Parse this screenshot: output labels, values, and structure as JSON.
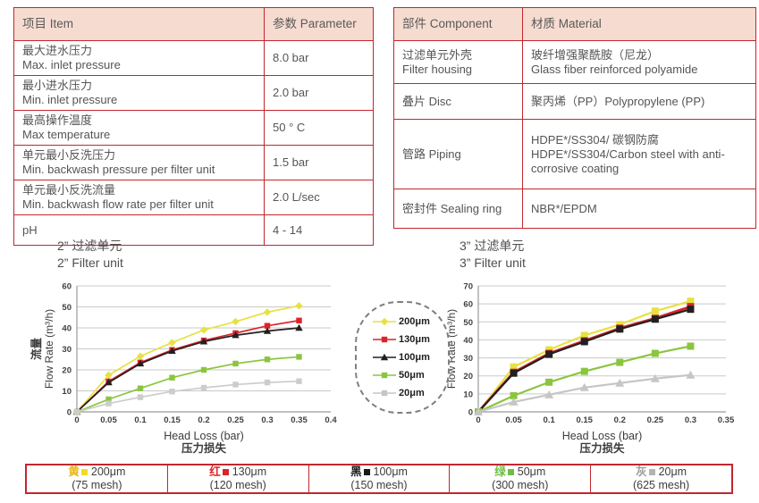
{
  "colors": {
    "border_red": "#c1272d",
    "header_bg": "#f6dcd0",
    "grid": "#c9c9c9",
    "axis": "#9b9b9b",
    "tick_text": "#404040"
  },
  "left_table": {
    "headers": [
      "项目 Item",
      "参数 Parameter"
    ],
    "rows": [
      {
        "zh": "最大进水压力",
        "en": "Max. inlet pressure",
        "value": "8.0 bar"
      },
      {
        "zh": "最小进水压力",
        "en": "Min. inlet pressure",
        "value": "2.0 bar"
      },
      {
        "zh": "最高操作温度",
        "en": "Max temperature",
        "value": "50 ° C"
      },
      {
        "zh": "单元最小反洗压力",
        "en": "Min. backwash pressure per filter unit",
        "value": "1.5 bar"
      },
      {
        "zh": "单元最小反洗流量",
        "en": "Min. backwash flow rate per filter unit",
        "value": "2.0 L/sec"
      },
      {
        "zh": "pH",
        "en": "",
        "value": "4 - 14"
      }
    ]
  },
  "right_table": {
    "headers": [
      "部件 Component",
      "材质 Material"
    ],
    "rows": [
      {
        "comp_zh": "过滤单元外壳",
        "comp_en": "Filter housing",
        "mat_zh": "玻纤增强聚酰胺（尼龙）",
        "mat_en": "Glass fiber reinforced polyamide"
      },
      {
        "comp_zh": "叠片 Disc",
        "comp_en": "",
        "mat_zh": "聚丙烯（PP）Polypropylene (PP)",
        "mat_en": ""
      },
      {
        "comp_zh": "管路 Piping",
        "comp_en": "",
        "mat_zh": "HDPE*/SS304/ 碳钢防腐",
        "mat_en": "HDPE*/SS304/Carbon steel with anti-corrosive coating"
      },
      {
        "comp_zh": "密封件 Sealing ring",
        "comp_en": "",
        "mat_zh": "NBR*/EPDM",
        "mat_en": ""
      }
    ]
  },
  "chart_data": [
    {
      "type": "line",
      "title_zh": "2”  过滤单元",
      "title_en": "2”  Filter unit",
      "ylabel_zh": "流量",
      "ylabel_en": "Flow Rate (m³/h)",
      "xlabel_en": "Head Loss (bar)",
      "xlabel_zh": "压力损失",
      "xlim": [
        0,
        0.4
      ],
      "ylim": [
        0,
        60
      ],
      "ytick_step": 10,
      "xticks": [
        0,
        0.05,
        0.1,
        0.15,
        0.2,
        0.25,
        0.3,
        0.35,
        0.4
      ],
      "x": [
        0,
        0.05,
        0.1,
        0.15,
        0.2,
        0.25,
        0.3,
        0.35
      ],
      "msize": 3.2,
      "lwidth": 1.7,
      "series": [
        {
          "name": "200μm",
          "color": "#e7e143",
          "marker": "diamond",
          "values": [
            0,
            17.5,
            26.5,
            33,
            39,
            43,
            47.5,
            50.5
          ]
        },
        {
          "name": "130μm",
          "color": "#d9252b",
          "marker": "square",
          "values": [
            0,
            14.5,
            23.5,
            29.5,
            34,
            37.5,
            41,
            43.5
          ]
        },
        {
          "name": "100μm",
          "color": "#231f20",
          "marker": "triangle",
          "values": [
            0,
            14,
            23,
            29,
            33.5,
            36.5,
            38.5,
            40
          ]
        },
        {
          "name": "50μm",
          "color": "#8bc53f",
          "marker": "square",
          "values": [
            0,
            6,
            11.2,
            16.3,
            20,
            23,
            25,
            26.2
          ]
        },
        {
          "name": "20μm",
          "color": "#cccccc",
          "marker": "square",
          "values": [
            0,
            4,
            7,
            9.7,
            11.5,
            13,
            14,
            14.6
          ]
        }
      ]
    },
    {
      "type": "line",
      "title_zh": "3”  过滤单元",
      "title_en": "3”  Filter unit",
      "ylabel_zh": "流量",
      "ylabel_en": "Flow Rate (m³/h)",
      "xlabel_en": "Head Loss (bar)",
      "xlabel_zh": "压力损失",
      "xlim": [
        0,
        0.35
      ],
      "ylim": [
        0,
        70
      ],
      "ytick_step": 10,
      "xticks": [
        0,
        0.05,
        0.1,
        0.15,
        0.2,
        0.25,
        0.3,
        0.35
      ],
      "x": [
        0,
        0.05,
        0.1,
        0.15,
        0.2,
        0.25,
        0.3
      ],
      "msize": 4,
      "lwidth": 2.2,
      "series": [
        {
          "name": "200μm",
          "color": "#e7e143",
          "marker": "square",
          "values": [
            0,
            25,
            34.5,
            42.5,
            48.5,
            56,
            61.5
          ]
        },
        {
          "name": "130μm",
          "color": "#d9252b",
          "marker": "square",
          "width": 2.8,
          "values": [
            0,
            22,
            32.5,
            39.5,
            46.5,
            52,
            58.5
          ]
        },
        {
          "name": "100μm",
          "color": "#231f20",
          "marker": "square",
          "values": [
            0,
            21.5,
            32,
            39,
            46,
            51.5,
            57
          ]
        },
        {
          "name": "50μm",
          "color": "#8bc53f",
          "marker": "square",
          "values": [
            0,
            9,
            16.5,
            22.5,
            27.5,
            32.5,
            36.5
          ]
        },
        {
          "name": "20μm",
          "color": "#c6c6c6",
          "marker": "triangle",
          "values": [
            0,
            5.5,
            9.5,
            13.5,
            16,
            18.5,
            20.5
          ]
        }
      ]
    }
  ],
  "mid_legend": {
    "items": [
      {
        "label": "200μm",
        "color": "#e7e143",
        "marker": "diamond"
      },
      {
        "label": "130μm",
        "color": "#d9252b",
        "marker": "square"
      },
      {
        "label": "100μm",
        "color": "#231f20",
        "marker": "triangle"
      },
      {
        "label": "50μm",
        "color": "#8bc53f",
        "marker": "square"
      },
      {
        "label": "20μm",
        "color": "#c6c6c6",
        "marker": "square"
      }
    ]
  },
  "bottom_legend": {
    "items": [
      {
        "cn": "黄",
        "char_color": "#e8b616",
        "swatch_color": "#f2dc1f",
        "size": "200μm",
        "mesh": "(75 mesh)"
      },
      {
        "cn": "红",
        "char_color": "#d9252b",
        "swatch_color": "#d9252b",
        "size": "130μm",
        "mesh": "(120 mesh)"
      },
      {
        "cn": "黑",
        "char_color": "#1a1a1a",
        "swatch_color": "#1a1a1a",
        "size": "100μm",
        "mesh": "(150 mesh)"
      },
      {
        "cn": "绿",
        "char_color": "#6fbe44",
        "swatch_color": "#6fbe44",
        "size": "50μm",
        "mesh": "(300 mesh)"
      },
      {
        "cn": "灰",
        "char_color": "#9e9e9e",
        "swatch_color": "#b3b3b3",
        "size": "20μm",
        "mesh": "(625 mesh)"
      }
    ]
  }
}
